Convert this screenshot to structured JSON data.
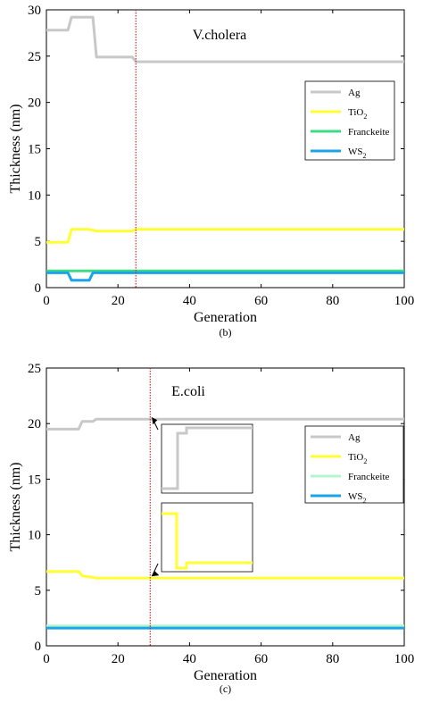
{
  "chart_data": [
    {
      "type": "line",
      "panel_label": "(b)",
      "title": "V.cholera",
      "xlabel": "Generation",
      "ylabel": "Thickness (nm)",
      "xlim": [
        0,
        100
      ],
      "ylim": [
        0,
        30
      ],
      "xticks": [
        0,
        20,
        40,
        60,
        80,
        100
      ],
      "yticks": [
        0,
        5,
        10,
        15,
        20,
        25,
        30
      ],
      "marker_generation": 25,
      "legend_position": "top-right",
      "series": [
        {
          "name": "Ag",
          "color": "#c8c8c8",
          "points": [
            [
              0,
              27.8
            ],
            [
              6,
              27.8
            ],
            [
              7,
              29.2
            ],
            [
              13,
              29.2
            ],
            [
              14,
              24.9
            ],
            [
              24,
              24.9
            ],
            [
              25,
              24.4
            ],
            [
              100,
              24.4
            ]
          ]
        },
        {
          "name": "TiO2",
          "legend_main": "TiO",
          "legend_sub": "2",
          "color": "#ffff33",
          "points": [
            [
              0,
              4.9
            ],
            [
              6,
              4.9
            ],
            [
              7,
              6.3
            ],
            [
              12,
              6.3
            ],
            [
              14,
              6.1
            ],
            [
              24,
              6.1
            ],
            [
              25,
              6.3
            ],
            [
              100,
              6.3
            ]
          ]
        },
        {
          "name": "Franckeite",
          "color": "#3ddc84",
          "points": [
            [
              0,
              1.8
            ],
            [
              100,
              1.8
            ]
          ]
        },
        {
          "name": "WS2",
          "legend_main": "WS",
          "legend_sub": "2",
          "color": "#1aa3e8",
          "points": [
            [
              0,
              1.6
            ],
            [
              6,
              1.6
            ],
            [
              7,
              0.8
            ],
            [
              12,
              0.8
            ],
            [
              13,
              1.6
            ],
            [
              100,
              1.6
            ]
          ]
        }
      ]
    },
    {
      "type": "line",
      "panel_label": "(c)",
      "title": "E.coli",
      "xlabel": "Generation",
      "ylabel": "Thickness (nm)",
      "xlim": [
        0,
        100
      ],
      "ylim": [
        0,
        25
      ],
      "xticks": [
        0,
        20,
        40,
        60,
        80,
        100
      ],
      "yticks": [
        0,
        5,
        10,
        15,
        20,
        25
      ],
      "marker_generation": 29,
      "legend_position": "top-right",
      "insets": [
        "zoom of Ag at marker",
        "zoom of TiO2 at marker"
      ],
      "series": [
        {
          "name": "Ag",
          "color": "#c8c8c8",
          "points": [
            [
              0,
              19.5
            ],
            [
              9,
              19.5
            ],
            [
              10,
              20.2
            ],
            [
              13,
              20.2
            ],
            [
              14,
              20.4
            ],
            [
              100,
              20.4
            ]
          ]
        },
        {
          "name": "TiO2",
          "legend_main": "TiO",
          "legend_sub": "2",
          "color": "#ffff33",
          "points": [
            [
              0,
              6.7
            ],
            [
              9,
              6.7
            ],
            [
              10,
              6.3
            ],
            [
              12,
              6.2
            ],
            [
              14,
              6.1
            ],
            [
              100,
              6.1
            ]
          ]
        },
        {
          "name": "Franckeite",
          "color": "#b3f5cf",
          "points": [
            [
              0,
              1.8
            ],
            [
              100,
              1.8
            ]
          ]
        },
        {
          "name": "WS2",
          "legend_main": "WS",
          "legend_sub": "2",
          "color": "#1aa3e8",
          "points": [
            [
              0,
              1.6
            ],
            [
              100,
              1.6
            ]
          ]
        }
      ]
    }
  ]
}
